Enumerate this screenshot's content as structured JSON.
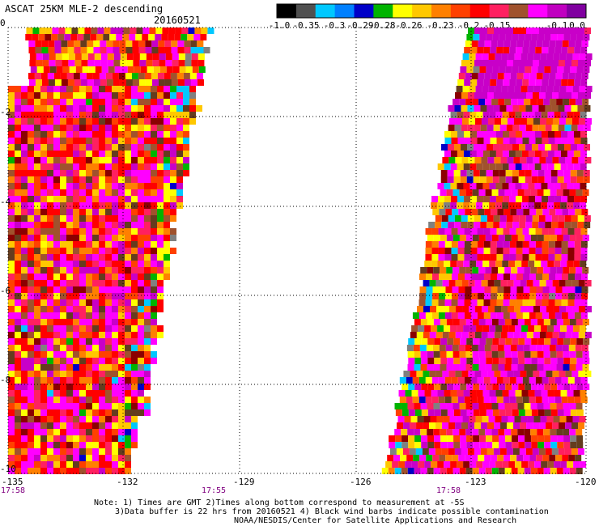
{
  "title": "ASCAT 25KM MLE-2 descending",
  "date": "20160521",
  "colorbar": {
    "colors": [
      "#000000",
      "#505050",
      "#00c8ff",
      "#0080ff",
      "#0000c8",
      "#00b400",
      "#ffff00",
      "#ffc800",
      "#ff8000",
      "#ff4000",
      "#ff0000",
      "#ff2060",
      "#a0522d",
      "#ff00ff",
      "#c000c0",
      "#8000a0"
    ],
    "labels": [
      "-1.0",
      "-0.35",
      "-0.3",
      "-0.29",
      "-0.28",
      "-0.26",
      "-0.23",
      "-0.2",
      "-0.15",
      "-0.1",
      "0.0"
    ]
  },
  "axes": {
    "x_ticks": [
      "-135",
      "-132",
      "-129",
      "-126",
      "-123",
      "-120"
    ],
    "y_ticks": [
      "0",
      "-2",
      "-4",
      "-6",
      "-8",
      "-10"
    ]
  },
  "times": [
    "17:58",
    "17:55",
    "17:58"
  ],
  "notes": [
    "Note: 1) Times are GMT 2)Times along bottom correspond to measurement at -5S",
    "3)Data buffer is 22 hrs from 20160521 4) Black wind barbs indicate possible contamination",
    "NOAA/NESDIS/Center for Satellite Applications and Research"
  ],
  "swath_palette": [
    "#ff00ff",
    "#c800c8",
    "#ff0000",
    "#ff4000",
    "#ff8000",
    "#ffc800",
    "#ffff00",
    "#a0522d",
    "#643c1e",
    "#ff2060",
    "#8b0000",
    "#00c8ff",
    "#0000c8",
    "#00b400",
    "#808080"
  ]
}
